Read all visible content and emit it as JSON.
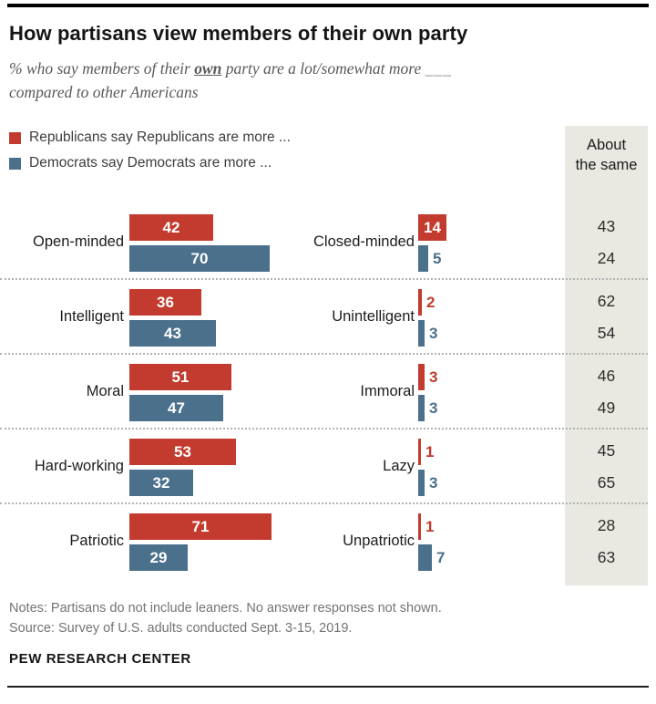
{
  "header": {
    "title": "How partisans view members of their own party",
    "subtitle_pre": "% who say members of their ",
    "subtitle_emph": "own",
    "subtitle_mid": " party are a lot/somewhat more ",
    "subtitle_blank": "___",
    "subtitle_line2": "compared to other Americans"
  },
  "legend": {
    "republicans": "Republicans say Republicans are more ...",
    "democrats": "Democrats say Democrats are more ..."
  },
  "same_column": {
    "header_line1": "About",
    "header_line2": "the same"
  },
  "colors": {
    "republican_red": "#c23b2e",
    "democrat_blue": "#4a708c",
    "same_panel_bg": "#e9e8e1",
    "value_text_inside": "#ffffff"
  },
  "footer": {
    "notes": "Notes: Partisans do not include leaners. No answer responses not shown.",
    "source": "Source: Survey of U.S. adults conducted Sept. 3-15, 2019.",
    "brand": "PEW RESEARCH CENTER"
  },
  "chart_data": {
    "type": "bar",
    "orientation": "horizontal",
    "unit": "percent",
    "title": "How partisans view members of their own party",
    "subtitle": "% who say members of their own party are a lot/somewhat more ___ compared to other Americans",
    "legend": [
      "Republicans say Republicans are more ...",
      "Democrats say Democrats are more ..."
    ],
    "legend_position": "top-left",
    "xlim": [
      0,
      100
    ],
    "grid": false,
    "groups": [
      {
        "positive_trait": "Open-minded",
        "negative_trait": "Closed-minded",
        "republicans": {
          "positive": 42,
          "negative": 14,
          "about_the_same": 43
        },
        "democrats": {
          "positive": 70,
          "negative": 5,
          "about_the_same": 24
        }
      },
      {
        "positive_trait": "Intelligent",
        "negative_trait": "Unintelligent",
        "republicans": {
          "positive": 36,
          "negative": 2,
          "about_the_same": 62
        },
        "democrats": {
          "positive": 43,
          "negative": 3,
          "about_the_same": 54
        }
      },
      {
        "positive_trait": "Moral",
        "negative_trait": "Immoral",
        "republicans": {
          "positive": 51,
          "negative": 3,
          "about_the_same": 46
        },
        "democrats": {
          "positive": 47,
          "negative": 3,
          "about_the_same": 49
        }
      },
      {
        "positive_trait": "Hard-working",
        "negative_trait": "Lazy",
        "republicans": {
          "positive": 53,
          "negative": 1,
          "about_the_same": 45
        },
        "democrats": {
          "positive": 32,
          "negative": 3,
          "about_the_same": 65
        }
      },
      {
        "positive_trait": "Patriotic",
        "negative_trait": "Unpatriotic",
        "republicans": {
          "positive": 71,
          "negative": 1,
          "about_the_same": 28
        },
        "democrats": {
          "positive": 29,
          "negative": 7,
          "about_the_same": 63
        }
      }
    ]
  }
}
